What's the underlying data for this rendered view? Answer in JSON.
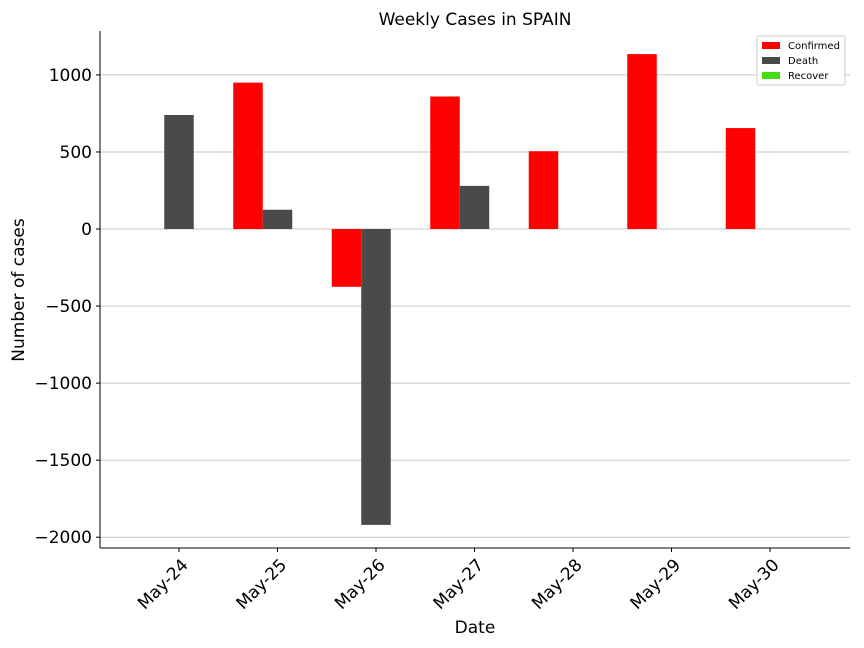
{
  "chart_data": {
    "type": "bar",
    "title": "Weekly Cases in SPAIN",
    "xlabel": "Date",
    "ylabel": "Number of cases",
    "categories": [
      "May-24",
      "May-25",
      "May-26",
      "May-27",
      "May-28",
      "May-29",
      "May-30"
    ],
    "series": [
      {
        "name": "Confirmed",
        "color": "#ff0000",
        "values": [
          0,
          950,
          -375,
          860,
          505,
          1135,
          655
        ]
      },
      {
        "name": "Death",
        "color": "#4a4a4a",
        "values": [
          740,
          125,
          -1920,
          280,
          0,
          0,
          0
        ]
      },
      {
        "name": "Recover",
        "color": "#44dd11",
        "values": [
          0,
          0,
          0,
          0,
          0,
          0,
          0
        ]
      }
    ],
    "ylim": [
      -2070,
      1285
    ],
    "yticks": [
      1000,
      500,
      0,
      -500,
      -1000,
      -1500,
      -2000
    ],
    "ytick_labels": [
      "1000",
      "500",
      "0",
      "−500",
      "−1000",
      "−1500",
      "−2000"
    ],
    "grid": "horizontal",
    "legend_position": "top-right"
  }
}
